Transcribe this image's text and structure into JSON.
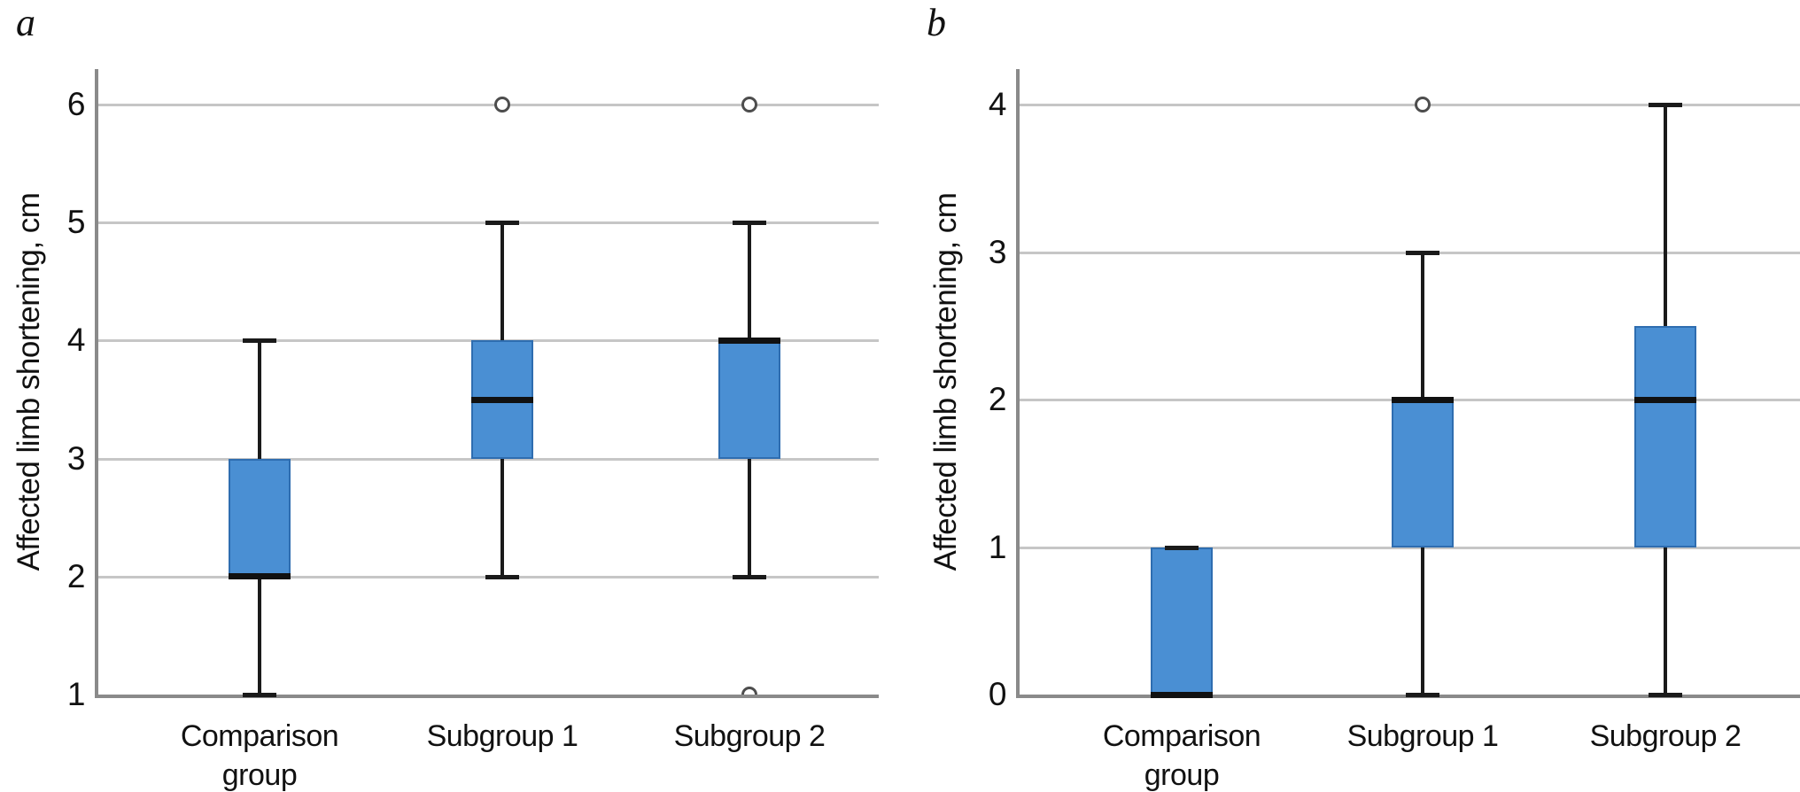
{
  "figure": {
    "background": "#ffffff"
  },
  "colors": {
    "box_fill": "#4a8fd3",
    "box_border": "#2e6db0",
    "median": "#111111",
    "whisker": "#1a1a1a",
    "gridline": "#c6c6c6",
    "axis": "#8a8a8a",
    "outlier_ring": "#4d4d4d",
    "text": "#111111"
  },
  "chart_data": [
    {
      "type": "boxplot",
      "panel": "a",
      "title": "",
      "ylabel": "Affected limb shortening, cm",
      "yticks": [
        1,
        2,
        3,
        4,
        5,
        6
      ],
      "ylim": [
        1,
        6.3
      ],
      "grid": "horizontal",
      "legend": "none",
      "categories": [
        "Comparison group",
        "Subgroup 1",
        "Subgroup 2"
      ],
      "boxes": [
        {
          "category": "Comparison group",
          "whisker_low": 1,
          "q1": 2,
          "median": 2,
          "q3": 3,
          "whisker_high": 4,
          "outliers": []
        },
        {
          "category": "Subgroup 1",
          "whisker_low": 2,
          "q1": 3,
          "median": 3.5,
          "q3": 4,
          "whisker_high": 5,
          "outliers": [
            6
          ]
        },
        {
          "category": "Subgroup 2",
          "whisker_low": 2,
          "q1": 3,
          "median": 4,
          "q3": 4,
          "whisker_high": 5,
          "outliers": [
            6,
            1
          ]
        }
      ]
    },
    {
      "type": "boxplot",
      "panel": "b",
      "title": "",
      "ylabel": "Affected limb shortening, cm",
      "yticks": [
        0,
        1,
        2,
        3,
        4
      ],
      "ylim": [
        0,
        4.25
      ],
      "grid": "horizontal",
      "legend": "none",
      "categories": [
        "Comparison group",
        "Subgroup 1",
        "Subgroup 2"
      ],
      "boxes": [
        {
          "category": "Comparison group",
          "whisker_low": 0,
          "q1": 0,
          "median": 0,
          "q3": 1,
          "whisker_high": 1,
          "outliers": []
        },
        {
          "category": "Subgroup 1",
          "whisker_low": 0,
          "q1": 1,
          "median": 2,
          "q3": 2,
          "whisker_high": 3,
          "outliers": [
            4
          ]
        },
        {
          "category": "Subgroup 2",
          "whisker_low": 0,
          "q1": 1,
          "median": 2,
          "q3": 2.5,
          "whisker_high": 4,
          "outliers": []
        }
      ]
    }
  ]
}
